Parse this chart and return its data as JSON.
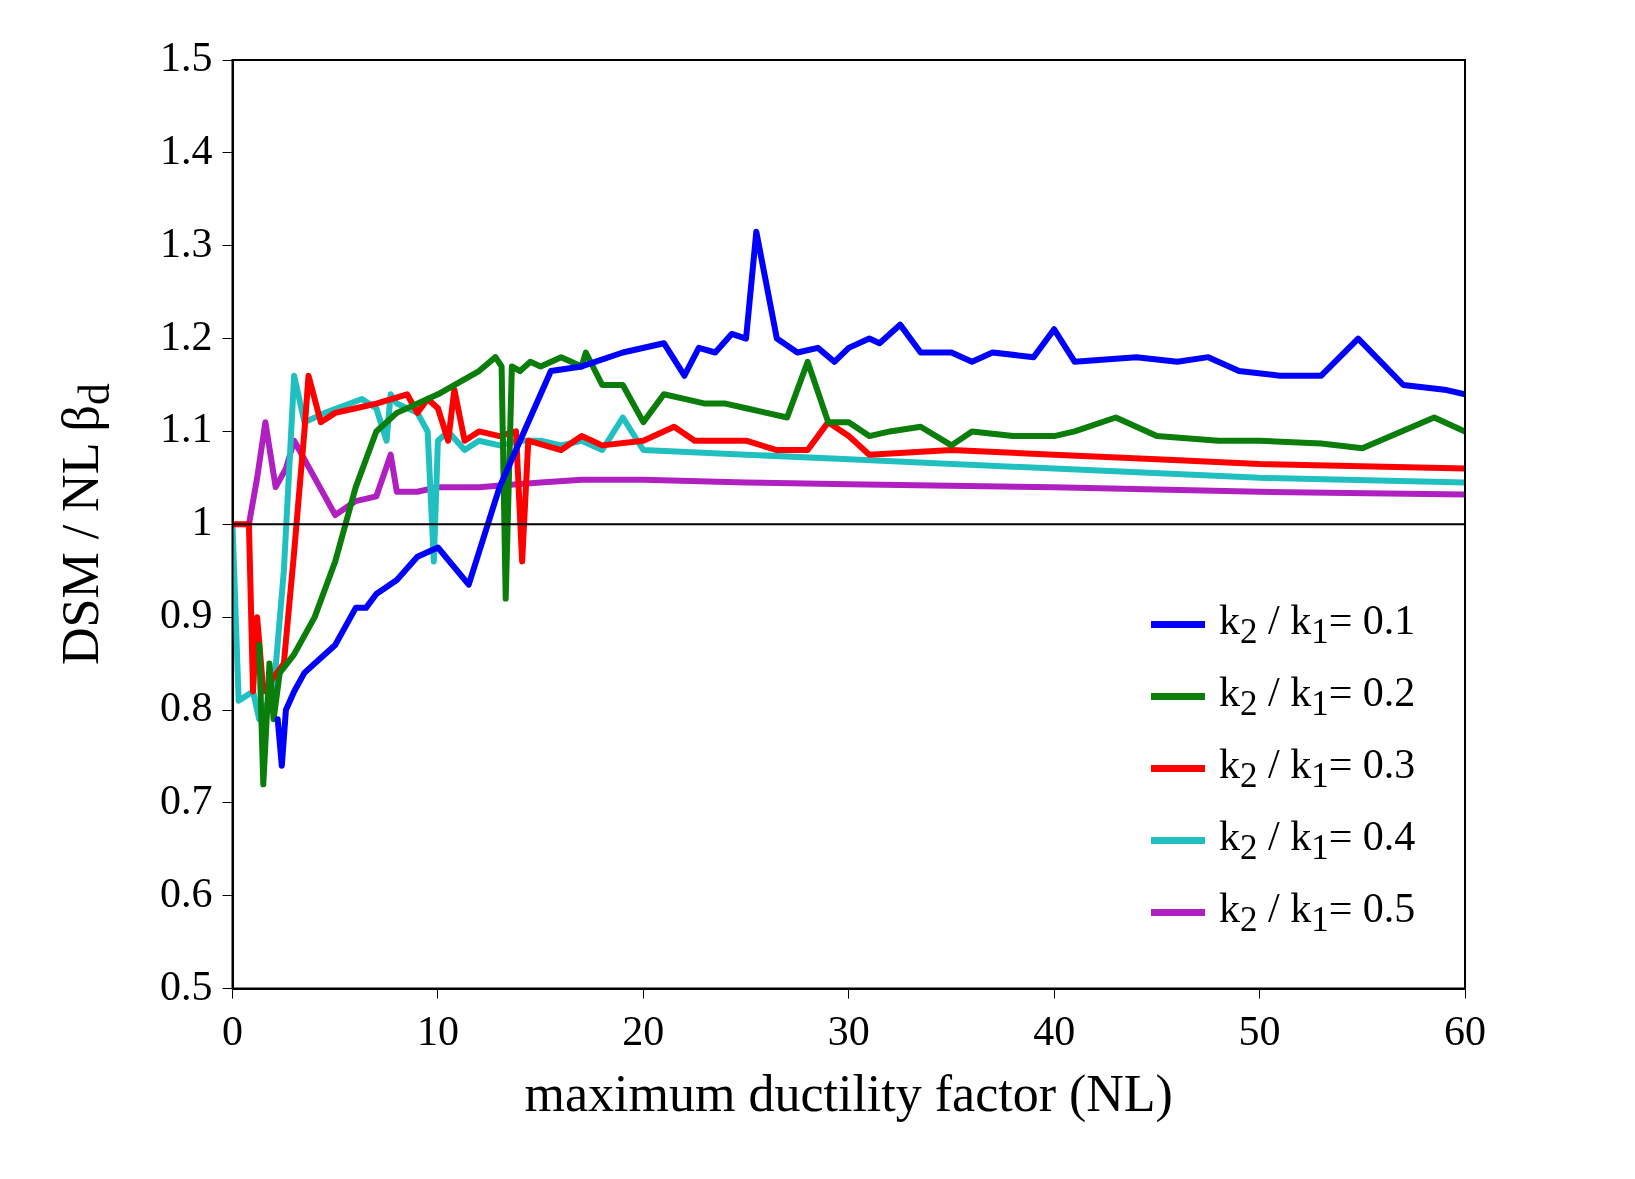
{
  "chart_data": {
    "type": "line",
    "xlabel": "maximum ductility factor (NL)",
    "ylabel": "DSM / NL β$_{d}$",
    "xlim": [
      0,
      60
    ],
    "ylim": [
      0.5,
      1.5
    ],
    "xticks": [
      0,
      10,
      20,
      30,
      40,
      50,
      60
    ],
    "yticks": [
      0.5,
      0.6,
      0.7,
      0.8,
      0.9,
      1,
      1.1,
      1.2,
      1.3,
      1.4,
      1.5
    ],
    "grid": false,
    "legend": "bottom right",
    "marker": "none",
    "line_style": "solid",
    "ref_lines": [
      {
        "axis": "y",
        "value": 1,
        "color": "#000000"
      }
    ],
    "series": [
      {
        "name": "k$_{2}$ / k$_{1}$= 0.1",
        "color": "#0000ff",
        "x": [
          2.2,
          2.4,
          2.6,
          3,
          3.5,
          4,
          5,
          6,
          6.5,
          7,
          8,
          9,
          10,
          11.5,
          13,
          15.5,
          17,
          19,
          21,
          22,
          22.7,
          23.5,
          24.3,
          25,
          25.5,
          26.5,
          27.5,
          28.5,
          29.3,
          30,
          31,
          31.5,
          32.5,
          33.5,
          35,
          36,
          37,
          39,
          40,
          41,
          44,
          46,
          47.5,
          49,
          51,
          53,
          54.8,
          57,
          59,
          60
        ],
        "values": [
          0.79,
          0.74,
          0.8,
          0.82,
          0.84,
          0.85,
          0.87,
          0.91,
          0.91,
          0.925,
          0.94,
          0.965,
          0.975,
          0.935,
          1.04,
          1.165,
          1.17,
          1.185,
          1.195,
          1.16,
          1.19,
          1.185,
          1.205,
          1.2,
          1.315,
          1.2,
          1.185,
          1.19,
          1.175,
          1.19,
          1.2,
          1.195,
          1.215,
          1.185,
          1.185,
          1.175,
          1.185,
          1.18,
          1.21,
          1.175,
          1.18,
          1.175,
          1.18,
          1.165,
          1.16,
          1.16,
          1.2,
          1.15,
          1.145,
          1.14
        ]
      },
      {
        "name": "k$_{2}$ / k$_{1}$= 0.2",
        "color": "#0a7d0a",
        "x": [
          1.3,
          1.5,
          1.8,
          2,
          2.3,
          3,
          4,
          5,
          6,
          7,
          8,
          10,
          12,
          12.8,
          13.1,
          13.3,
          13.6,
          14,
          14.5,
          15,
          16,
          17,
          17.2,
          18,
          19,
          20,
          21,
          22,
          23,
          24,
          25,
          26,
          27,
          28,
          29,
          30,
          31,
          32,
          33.5,
          35,
          36,
          38,
          40,
          41,
          43,
          45,
          48,
          50,
          53,
          55,
          58.5,
          60
        ],
        "values": [
          0.87,
          0.72,
          0.85,
          0.79,
          0.84,
          0.86,
          0.9,
          0.96,
          1.04,
          1.1,
          1.12,
          1.14,
          1.165,
          1.18,
          1.17,
          0.92,
          1.17,
          1.165,
          1.175,
          1.17,
          1.18,
          1.17,
          1.185,
          1.15,
          1.15,
          1.11,
          1.14,
          1.135,
          1.13,
          1.13,
          1.125,
          1.12,
          1.115,
          1.175,
          1.11,
          1.11,
          1.095,
          1.1,
          1.105,
          1.085,
          1.1,
          1.095,
          1.095,
          1.1,
          1.115,
          1.095,
          1.09,
          1.09,
          1.087,
          1.082,
          1.115,
          1.1
        ]
      },
      {
        "name": "k$_{2}$ / k$_{1}$= 0.3",
        "color": "#ff0000",
        "x": [
          0,
          0.8,
          1,
          1.2,
          1.5,
          2.5,
          3,
          3.5,
          3.7,
          4.3,
          5,
          6,
          7,
          8.5,
          9,
          9.5,
          10,
          10.5,
          10.8,
          11.3,
          12,
          13,
          13.8,
          14.1,
          14.4,
          16,
          17,
          18,
          20,
          21.5,
          22.5,
          25,
          26.5,
          28,
          29,
          30,
          31,
          35,
          40,
          45,
          50,
          60
        ],
        "values": [
          1,
          1,
          0.82,
          0.9,
          0.82,
          0.85,
          0.97,
          1.1,
          1.16,
          1.11,
          1.12,
          1.125,
          1.13,
          1.14,
          1.12,
          1.135,
          1.125,
          1.09,
          1.145,
          1.09,
          1.1,
          1.095,
          1.1,
          0.96,
          1.09,
          1.08,
          1.095,
          1.085,
          1.09,
          1.105,
          1.09,
          1.09,
          1.08,
          1.08,
          1.11,
          1.095,
          1.075,
          1.08,
          1.075,
          1.07,
          1.065,
          1.06
        ]
      },
      {
        "name": "k$_{2}$ / k$_{1}$= 0.4",
        "color": "#20c0c0",
        "x": [
          0,
          0.3,
          1,
          1.3,
          2,
          2.5,
          3,
          3.5,
          4.5,
          6.3,
          7,
          7.5,
          7.7,
          8,
          9,
          9.5,
          9.8,
          10,
          10.5,
          11.3,
          12,
          13,
          14,
          15,
          16,
          17,
          18,
          19,
          20,
          25,
          30,
          40,
          50,
          60
        ],
        "values": [
          1,
          0.81,
          0.82,
          0.79,
          0.82,
          0.95,
          1.16,
          1.11,
          1.12,
          1.135,
          1.125,
          1.09,
          1.14,
          1.13,
          1.12,
          1.1,
          0.96,
          1.09,
          1.1,
          1.08,
          1.09,
          1.085,
          1.09,
          1.09,
          1.085,
          1.09,
          1.08,
          1.115,
          1.08,
          1.075,
          1.07,
          1.06,
          1.05,
          1.045
        ]
      },
      {
        "name": "k$_{2}$ / k$_{1}$= 0.5",
        "color": "#b020c0",
        "x": [
          0.8,
          1.2,
          1.6,
          2.1,
          2.6,
          3,
          4,
          5,
          6,
          7,
          7.7,
          8,
          9,
          10,
          12,
          15,
          17,
          20,
          25,
          30,
          40,
          50,
          60
        ],
        "values": [
          1,
          1.05,
          1.11,
          1.04,
          1.06,
          1.09,
          1.05,
          1.01,
          1.025,
          1.03,
          1.075,
          1.035,
          1.035,
          1.04,
          1.04,
          1.045,
          1.048,
          1.048,
          1.045,
          1.043,
          1.04,
          1.035,
          1.032
        ]
      }
    ]
  }
}
